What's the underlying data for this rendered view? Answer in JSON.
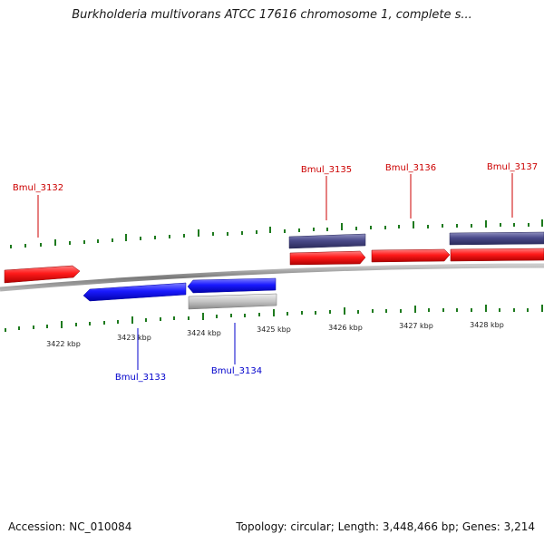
{
  "title": "Burkholderia multivorans ATCC 17616 chromosome 1, complete s...",
  "footer": {
    "accession": "Accession: NC_010084",
    "summary": "Topology: circular; Length: 3,448,466 bp; Genes: 3,214"
  },
  "colors": {
    "forward_gene": "#ff1a1a",
    "reverse_gene": "#1a1aff",
    "operon": "#4a4a8a",
    "pseudo": "#c0c0c0",
    "tick": "#1e7a1e",
    "backbone": "#888888",
    "forward_label": "#cc0000",
    "reverse_label": "#0000cc"
  },
  "scale_labels": [
    "3422 kbp",
    "3423 kbp",
    "3424 kbp",
    "3425 kbp",
    "3426 kbp",
    "3427 kbp",
    "3428 kbp"
  ],
  "gene_labels": {
    "forward": [
      "Bmul_3132",
      "Bmul_3135",
      "Bmul_3136",
      "Bmul_3137"
    ],
    "reverse": [
      "Bmul_3133",
      "Bmul_3134"
    ]
  }
}
